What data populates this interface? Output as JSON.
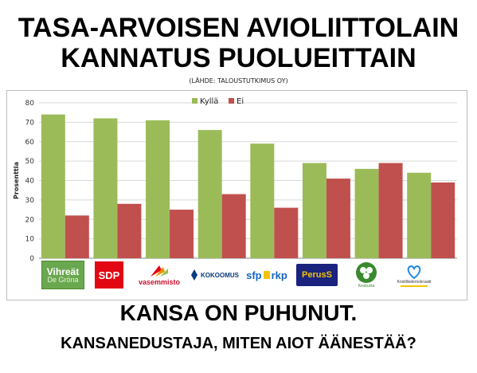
{
  "title_line1": "TASA-ARVOISEN AVIOLIITTOLAIN",
  "title_line2": "KANNATUS PUOLUEITTAIN",
  "source": "(LÄHDE: TALOUSTUTKIMUS OY)",
  "bottom_line1": "KANSA ON PUHUNUT.",
  "bottom_line2": "KANSANEDUSTAJA, MITEN AIOT ÄÄNESTÄÄ?",
  "colors": {
    "kylla": "#9bbb59",
    "ei": "#c0504d"
  },
  "logos": {
    "vihreat_line1": "Vihreät",
    "vihreat_line2": "De Gröna",
    "sdp": "SDP",
    "vasemmisto": "vasemmisto",
    "kokoomus": "KOKOOMUS",
    "sfp": "sfp",
    "rkp": "rkp",
    "perus": "PerusS",
    "keskusta": "Keskusta",
    "kd": "Kristillisdemokraatit"
  },
  "chart_data": {
    "type": "bar",
    "categories": [
      "Vihreät",
      "SDP",
      "Vasemmisto",
      "Kokoomus",
      "RKP",
      "Perussuomalaiset",
      "Keskusta",
      "KD"
    ],
    "series": [
      {
        "name": "Kyllä",
        "values": [
          74,
          72,
          71,
          66,
          59,
          49,
          46,
          44
        ]
      },
      {
        "name": "Ei",
        "values": [
          22,
          28,
          25,
          33,
          26,
          41,
          49,
          39
        ]
      }
    ],
    "ylabel": "Prosenttia",
    "ylim": [
      0,
      80
    ],
    "yticks": [
      "0",
      "10",
      "20",
      "30",
      "40",
      "50",
      "60",
      "70",
      "80"
    ],
    "legend_position": "top",
    "grid": true
  }
}
